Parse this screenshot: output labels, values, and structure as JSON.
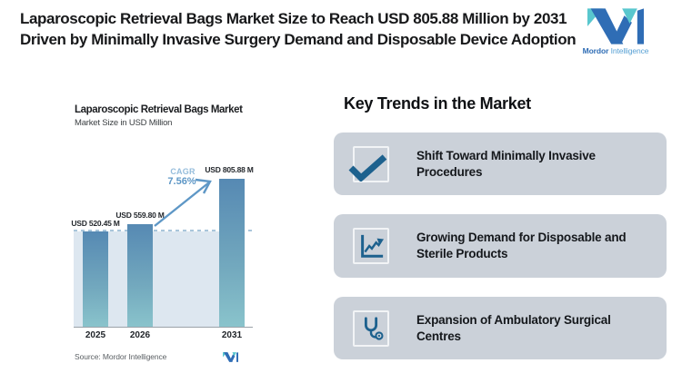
{
  "header": {
    "title": "Laparoscopic Retrieval Bags Market Size to Reach USD 805.88 Million by 2031 Driven by Minimally Invasive Surgery Demand and Disposable Device Adoption",
    "logo": {
      "brand_bold": "Mordor",
      "brand_light": "Intelligence"
    }
  },
  "chart": {
    "title": "Laparoscopic Retrieval Bags Market",
    "subtitle": "Market Size in USD Million",
    "cagr_label": "CAGR",
    "cagr_value": "7.56%",
    "source": "Source: Mordor Intelligence",
    "bars": [
      {
        "year": "2025",
        "label": "USD 520.45 M"
      },
      {
        "year": "2026",
        "label": "USD 559.80 M"
      },
      {
        "year": "2031",
        "label": "USD 805.88 M"
      }
    ]
  },
  "chart_data": {
    "type": "bar",
    "categories": [
      "2025",
      "2026",
      "2031"
    ],
    "values": [
      520.45,
      559.8,
      805.88
    ],
    "title": "Laparoscopic Retrieval Bags Market",
    "subtitle": "Market Size in USD Million",
    "ylabel": "Market Size in USD Million",
    "ylim": [
      0,
      805.88
    ],
    "grid": false,
    "legend": "none",
    "annotations": [
      "USD 520.45 M",
      "USD 559.80 M",
      "USD 805.88 M",
      "CAGR 7.56%"
    ],
    "reference_line": 520.45,
    "source": "Source: Mordor Intelligence"
  },
  "trends": {
    "heading": "Key Trends in the Market",
    "items": [
      {
        "icon": "checkmark-icon",
        "text": "Shift Toward Minimally Invasive Procedures"
      },
      {
        "icon": "trend-chart-icon",
        "text": "Growing Demand for Disposable and Sterile Products"
      },
      {
        "icon": "stethoscope-icon",
        "text": "Expansion of Ambulatory Surgical Centres"
      }
    ]
  },
  "colors": {
    "bar_top": "#5689b3",
    "bar_bottom": "#8ac4cc",
    "plot_bg": "#dde7f0",
    "dashed_line": "#a9c6db",
    "cagr_label": "#94bcdb",
    "cagr_value": "#5e97c6",
    "arrow": "#5e97c6",
    "card_bg": "#cbd1d9",
    "icon_blue": "#1d618e",
    "logo_blue": "#2f6db5",
    "logo_teal": "#59c7ce",
    "text_dark": "#17181a",
    "text_gray": "#5a5f63"
  }
}
